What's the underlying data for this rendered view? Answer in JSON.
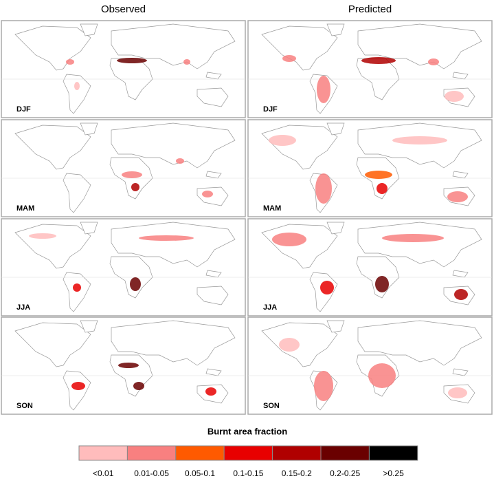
{
  "columns": [
    "Observed",
    "Predicted"
  ],
  "rows": [
    "DJF",
    "MAM",
    "JJA",
    "SON"
  ],
  "legend": {
    "title": "Burnt area fraction",
    "items": [
      {
        "label": "<0.01",
        "color": "#ffbcbc"
      },
      {
        "label": "0.01-0.05",
        "color": "#f88080"
      },
      {
        "label": "0.05-0.1",
        "color": "#ff5a00"
      },
      {
        "label": "0.1-0.15",
        "color": "#e80000"
      },
      {
        "label": "0.15-0.2",
        "color": "#b00000"
      },
      {
        "label": "0.2-0.25",
        "color": "#6a0000"
      },
      {
        "label": ">0.25",
        "color": "#000000"
      }
    ]
  }
}
